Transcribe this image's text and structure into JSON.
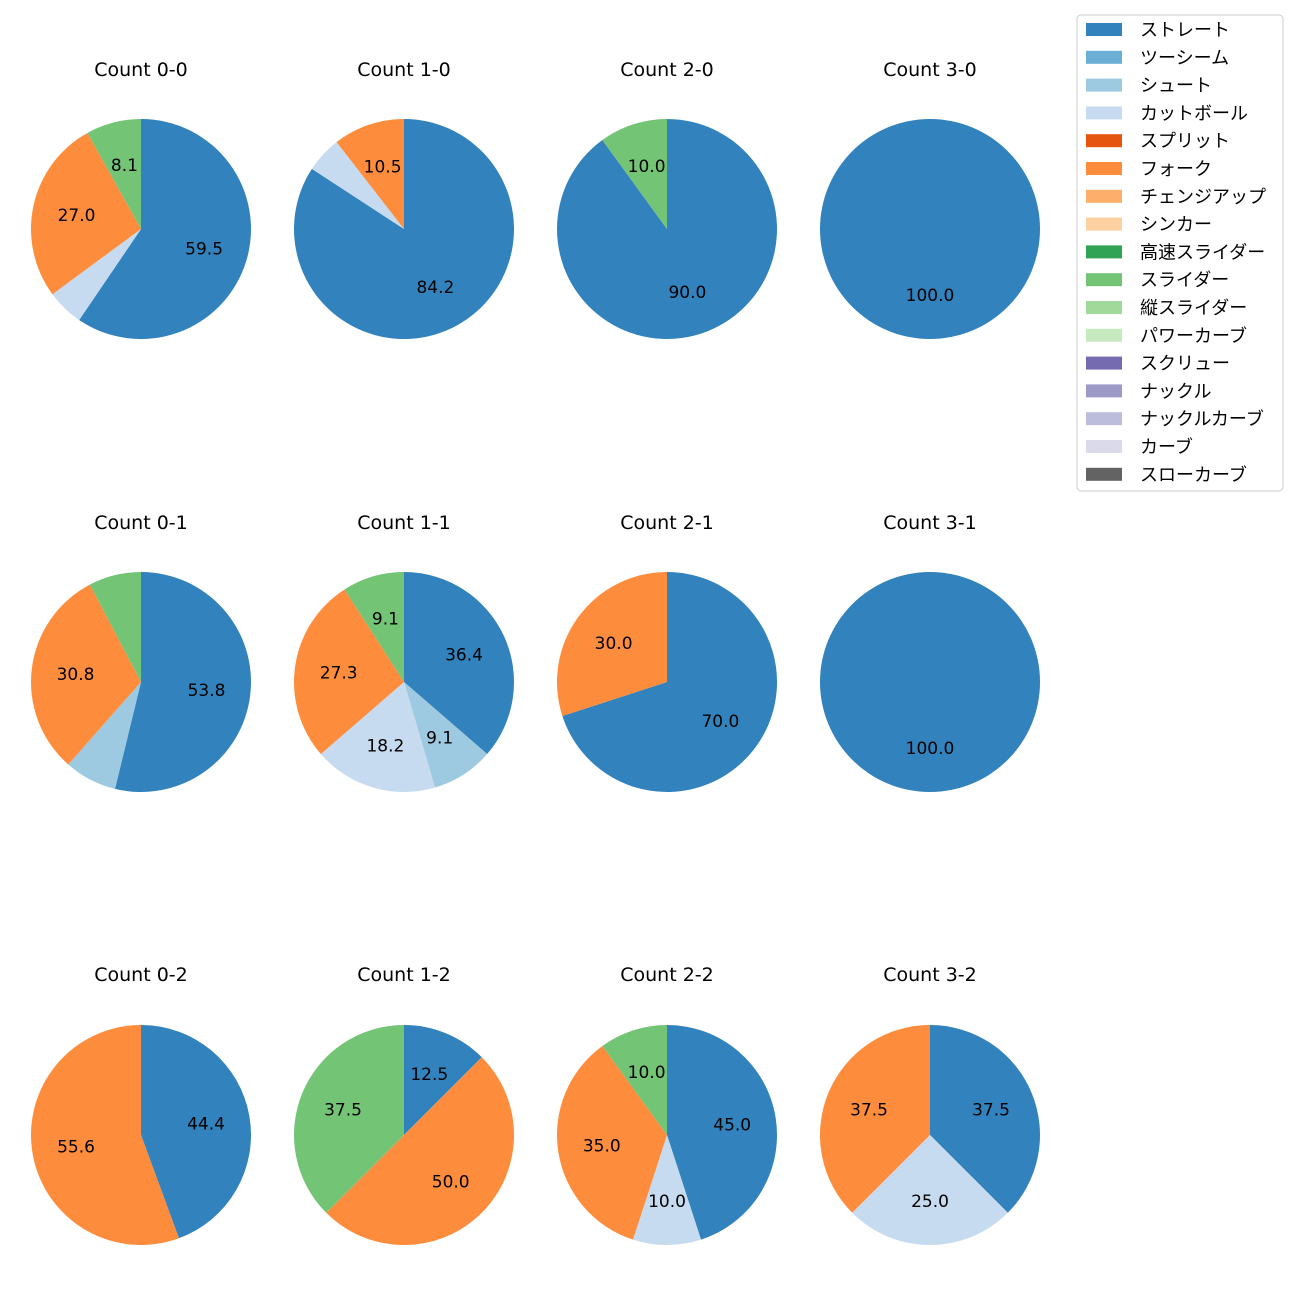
{
  "colors": {
    "ストレート": "#3182bd",
    "ツーシーム": "#6baed6",
    "シュート": "#9ecae1",
    "カットボール": "#c6dbef",
    "スプリット": "#e6550d",
    "フォーク": "#fd8d3c",
    "チェンジアップ": "#fdae6b",
    "シンカー": "#fdd0a2",
    "高速スライダー": "#31a354",
    "スライダー": "#74c476",
    "縦スライダー": "#a1d99b",
    "パワーカーブ": "#c7e9c0",
    "スクリュー": "#756bb1",
    "ナックル": "#9e9ac8",
    "ナックルカーブ": "#bcbddc",
    "カーブ": "#dadaeb",
    "スローカーブ": "#636363"
  },
  "legend": {
    "entries": [
      "ストレート",
      "ツーシーム",
      "シュート",
      "カットボール",
      "スプリット",
      "フォーク",
      "チェンジアップ",
      "シンカー",
      "高速スライダー",
      "スライダー",
      "縦スライダー",
      "パワーカーブ",
      "スクリュー",
      "ナックル",
      "ナックルカーブ",
      "カーブ",
      "スローカーブ"
    ]
  },
  "chart_data": [
    {
      "type": "pie",
      "title": "Count 0-0",
      "slices": [
        {
          "label": "ストレート",
          "value": 59.5,
          "text": "59.5"
        },
        {
          "label": "カットボール",
          "value": 5.4,
          "text": ""
        },
        {
          "label": "フォーク",
          "value": 27.0,
          "text": "27.0"
        },
        {
          "label": "スライダー",
          "value": 8.1,
          "text": "8.1"
        }
      ]
    },
    {
      "type": "pie",
      "title": "Count 1-0",
      "slices": [
        {
          "label": "ストレート",
          "value": 84.2,
          "text": "84.2"
        },
        {
          "label": "カットボール",
          "value": 5.3,
          "text": ""
        },
        {
          "label": "フォーク",
          "value": 10.5,
          "text": "10.5"
        }
      ]
    },
    {
      "type": "pie",
      "title": "Count 2-0",
      "slices": [
        {
          "label": "ストレート",
          "value": 90.0,
          "text": "90.0"
        },
        {
          "label": "スライダー",
          "value": 10.0,
          "text": "10.0"
        }
      ]
    },
    {
      "type": "pie",
      "title": "Count 3-0",
      "slices": [
        {
          "label": "ストレート",
          "value": 100.0,
          "text": "100.0"
        }
      ]
    },
    {
      "type": "pie",
      "title": "Count 0-1",
      "slices": [
        {
          "label": "ストレート",
          "value": 53.8,
          "text": "53.8"
        },
        {
          "label": "シュート",
          "value": 7.7,
          "text": ""
        },
        {
          "label": "フォーク",
          "value": 30.8,
          "text": "30.8"
        },
        {
          "label": "スライダー",
          "value": 7.7,
          "text": ""
        }
      ]
    },
    {
      "type": "pie",
      "title": "Count 1-1",
      "slices": [
        {
          "label": "ストレート",
          "value": 36.4,
          "text": "36.4"
        },
        {
          "label": "シュート",
          "value": 9.1,
          "text": "9.1"
        },
        {
          "label": "カットボール",
          "value": 18.2,
          "text": "18.2"
        },
        {
          "label": "フォーク",
          "value": 27.3,
          "text": "27.3"
        },
        {
          "label": "スライダー",
          "value": 9.1,
          "text": "9.1"
        }
      ]
    },
    {
      "type": "pie",
      "title": "Count 2-1",
      "slices": [
        {
          "label": "ストレート",
          "value": 70.0,
          "text": "70.0"
        },
        {
          "label": "フォーク",
          "value": 30.0,
          "text": "30.0"
        }
      ]
    },
    {
      "type": "pie",
      "title": "Count 3-1",
      "slices": [
        {
          "label": "ストレート",
          "value": 100.0,
          "text": "100.0"
        }
      ]
    },
    {
      "type": "pie",
      "title": "Count 0-2",
      "slices": [
        {
          "label": "ストレート",
          "value": 44.4,
          "text": "44.4"
        },
        {
          "label": "フォーク",
          "value": 55.6,
          "text": "55.6"
        }
      ]
    },
    {
      "type": "pie",
      "title": "Count 1-2",
      "slices": [
        {
          "label": "ストレート",
          "value": 12.5,
          "text": "12.5"
        },
        {
          "label": "フォーク",
          "value": 50.0,
          "text": "50.0"
        },
        {
          "label": "スライダー",
          "value": 37.5,
          "text": "37.5"
        }
      ]
    },
    {
      "type": "pie",
      "title": "Count 2-2",
      "slices": [
        {
          "label": "ストレート",
          "value": 45.0,
          "text": "45.0"
        },
        {
          "label": "カットボール",
          "value": 10.0,
          "text": "10.0"
        },
        {
          "label": "フォーク",
          "value": 35.0,
          "text": "35.0"
        },
        {
          "label": "スライダー",
          "value": 10.0,
          "text": "10.0"
        }
      ]
    },
    {
      "type": "pie",
      "title": "Count 3-2",
      "slices": [
        {
          "label": "ストレート",
          "value": 37.5,
          "text": "37.5"
        },
        {
          "label": "カットボール",
          "value": 25.0,
          "text": "25.0"
        },
        {
          "label": "フォーク",
          "value": 37.5,
          "text": "37.5"
        }
      ]
    }
  ]
}
